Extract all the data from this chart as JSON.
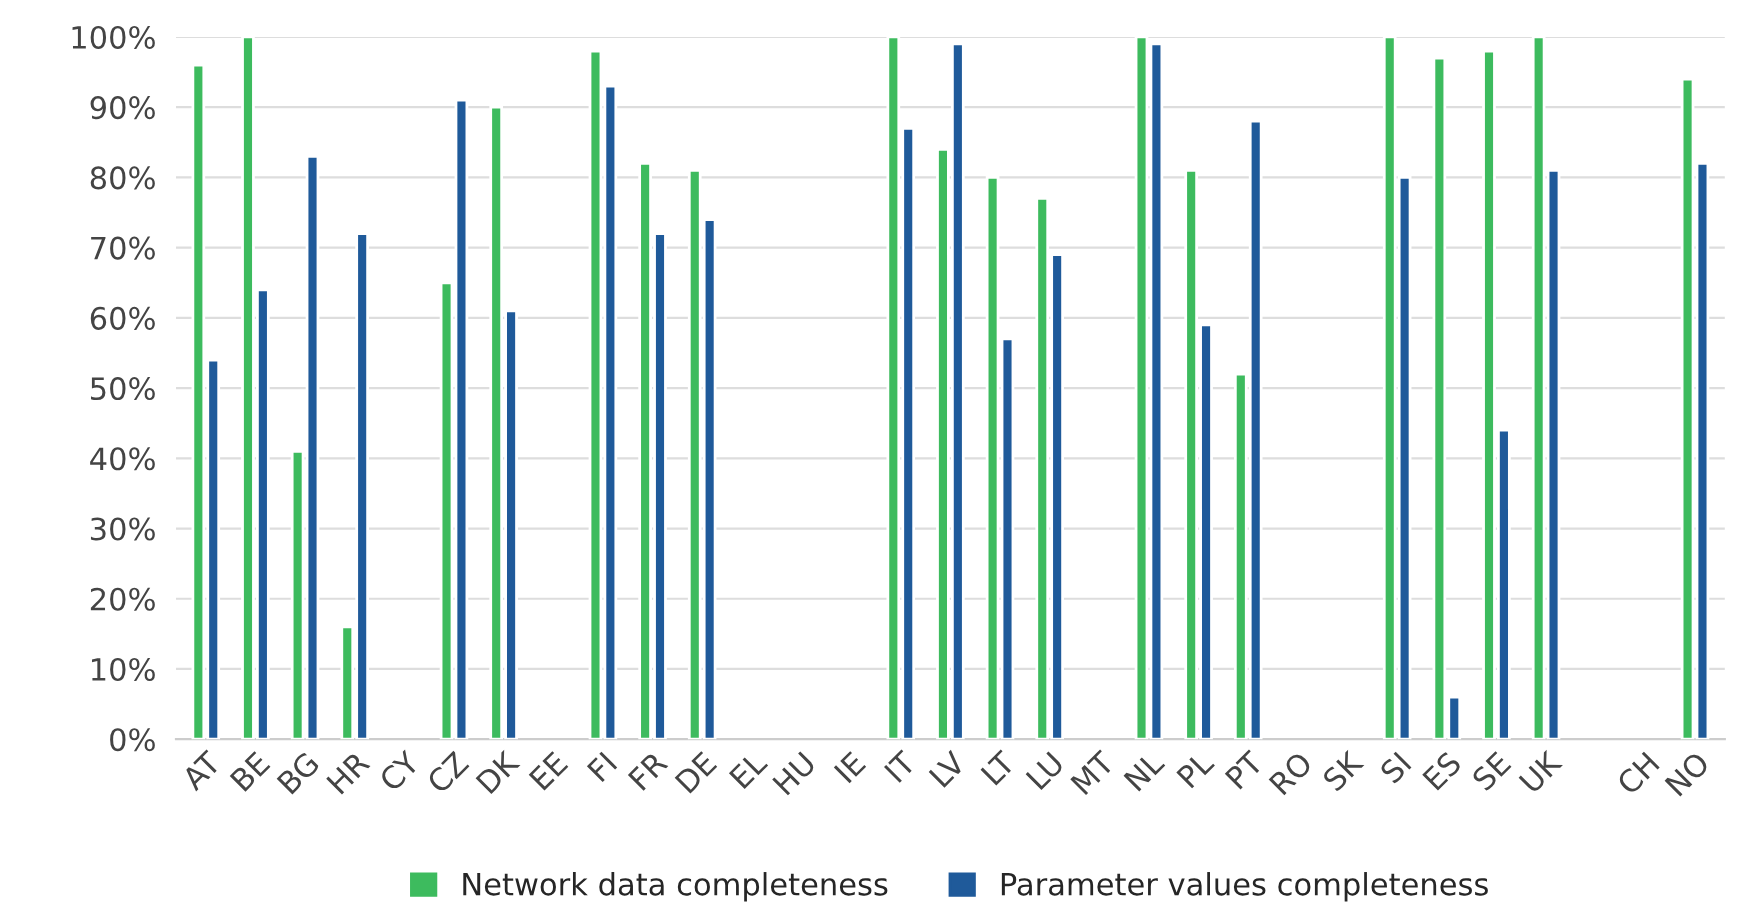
{
  "chart_data": {
    "type": "bar",
    "categories": [
      "AT",
      "BE",
      "BG",
      "HR",
      "CY",
      "CZ",
      "DK",
      "EE",
      "FI",
      "FR",
      "DE",
      "EL",
      "HU",
      "IE",
      "IT",
      "LV",
      "LT",
      "LU",
      "MT",
      "NL",
      "PL",
      "PT",
      "RO",
      "SK",
      "SI",
      "ES",
      "SE",
      "UK",
      null,
      "CH",
      "NO"
    ],
    "series": [
      {
        "name": "Network data completeness",
        "color": "#3dbb5e",
        "values": [
          96,
          100,
          41,
          16,
          null,
          65,
          90,
          null,
          98,
          82,
          81,
          null,
          null,
          null,
          100,
          84,
          80,
          77,
          null,
          100,
          81,
          52,
          null,
          null,
          100,
          97,
          98,
          100,
          null,
          null,
          94
        ]
      },
      {
        "name": "Parameter values completeness",
        "color": "#1f5a9a",
        "values": [
          54,
          64,
          83,
          72,
          null,
          91,
          61,
          null,
          93,
          72,
          74,
          null,
          null,
          null,
          87,
          99,
          57,
          69,
          null,
          99,
          59,
          88,
          null,
          null,
          80,
          6,
          44,
          81,
          null,
          null,
          82
        ]
      }
    ],
    "ylim": [
      0,
      100
    ],
    "yticks": [
      {
        "value": 0,
        "label": "0%"
      },
      {
        "value": 10,
        "label": "10%"
      },
      {
        "value": 20,
        "label": "20%"
      },
      {
        "value": 30,
        "label": "30%"
      },
      {
        "value": 40,
        "label": "40%"
      },
      {
        "value": 50,
        "label": "50%"
      },
      {
        "value": 60,
        "label": "60%"
      },
      {
        "value": 70,
        "label": "70%"
      },
      {
        "value": 80,
        "label": "80%"
      },
      {
        "value": 90,
        "label": "90%"
      },
      {
        "value": 100,
        "label": "100%"
      }
    ],
    "grid": "y",
    "legend": "bottom"
  }
}
